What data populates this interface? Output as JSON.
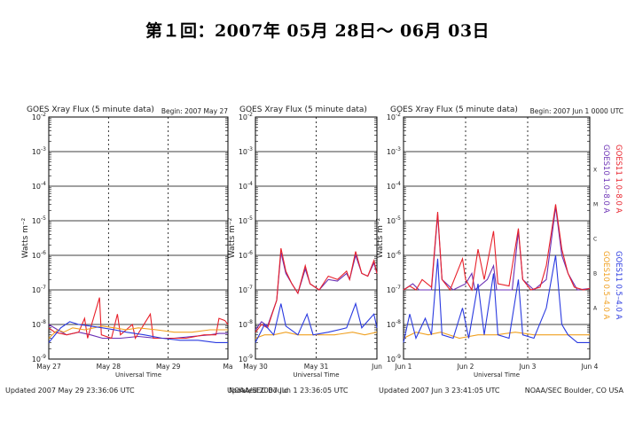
{
  "page": {
    "title": "第１回：2007年 05月 28日～ 06月 03日"
  },
  "legend": {
    "goes10_long": "GOES10 1.0–8.0 A",
    "goes11_long": "GOES11 1.0–8.0 A",
    "goes10_short": "GOES10 0.5–4.0 A",
    "goes11_short": "GOES11 0.5–4.0 A"
  },
  "colors": {
    "goes10_long": "#6a2fb4",
    "goes11_long": "#e8202a",
    "goes10_short": "#f0a020",
    "goes11_short": "#2a3ae0"
  },
  "chart_data": [
    {
      "type": "line",
      "title": "GOES Xray Flux (5 minute data)",
      "begin_label": "Begin:  2007 May 27",
      "ylabel": "Watts m⁻²",
      "xlabel": "Universal Time",
      "yscale": "log",
      "ylim": [
        1e-09,
        0.01
      ],
      "ytick_exponents": [
        -9,
        -8,
        -7,
        -6,
        -5,
        -4,
        -3,
        -2
      ],
      "xticks": [
        "May 27",
        "May 28",
        "May 29",
        "Ma"
      ],
      "xrange_days": [
        0,
        3
      ],
      "updated": "Updated 2007 May 29 23:36:06 UTC",
      "credit": "NOAA/SEC Bould",
      "series": [
        {
          "name": "GOES10 1.0–8.0 A",
          "color": "#6a2fb4",
          "points": [
            [
              0,
              1e-08
            ],
            [
              0.15,
              7e-09
            ],
            [
              0.3,
              5e-09
            ],
            [
              0.5,
              6e-09
            ],
            [
              0.7,
              5e-09
            ],
            [
              0.9,
              4e-09
            ],
            [
              1.2,
              4e-09
            ],
            [
              1.5,
              4.5e-09
            ],
            [
              1.8,
              4e-09
            ],
            [
              2.1,
              4e-09
            ],
            [
              2.4,
              4.5e-09
            ],
            [
              2.7,
              5e-09
            ],
            [
              2.85,
              5.5e-09
            ],
            [
              3,
              5.5e-09
            ]
          ]
        },
        {
          "name": "GOES11 1.0–8.0 A",
          "color": "#e8202a",
          "points": [
            [
              0,
              8e-09
            ],
            [
              0.1,
              6e-09
            ],
            [
              0.3,
              5e-09
            ],
            [
              0.5,
              6e-09
            ],
            [
              0.6,
              1.5e-08
            ],
            [
              0.65,
              4e-09
            ],
            [
              0.85,
              6e-08
            ],
            [
              0.88,
              5e-09
            ],
            [
              1.05,
              4e-09
            ],
            [
              1.15,
              2e-08
            ],
            [
              1.2,
              5e-09
            ],
            [
              1.4,
              1e-08
            ],
            [
              1.45,
              4e-09
            ],
            [
              1.7,
              2e-08
            ],
            [
              1.75,
              4e-09
            ],
            [
              2,
              4e-09
            ],
            [
              2.3,
              4e-09
            ],
            [
              2.6,
              5e-09
            ],
            [
              2.8,
              5e-09
            ],
            [
              2.85,
              1.5e-08
            ],
            [
              2.95,
              1.3e-08
            ],
            [
              3,
              1e-08
            ]
          ]
        },
        {
          "name": "GOES10 0.5–4.0 A",
          "color": "#f0a020",
          "points": [
            [
              0,
              4e-09
            ],
            [
              0.15,
              7e-09
            ],
            [
              0.25,
              6e-09
            ],
            [
              0.4,
              8e-09
            ],
            [
              0.6,
              7e-09
            ],
            [
              0.9,
              9e-09
            ],
            [
              1.1,
              8e-09
            ],
            [
              1.3,
              7e-09
            ],
            [
              1.5,
              8e-09
            ],
            [
              1.8,
              7e-09
            ],
            [
              2.1,
              6e-09
            ],
            [
              2.4,
              6e-09
            ],
            [
              2.7,
              7e-09
            ],
            [
              3,
              7e-09
            ]
          ]
        },
        {
          "name": "GOES11 0.5–4.0 A",
          "color": "#2a3ae0",
          "points": [
            [
              0,
              3e-09
            ],
            [
              0.2,
              8e-09
            ],
            [
              0.35,
              1.2e-08
            ],
            [
              0.5,
              1e-08
            ],
            [
              0.7,
              9e-09
            ],
            [
              0.9,
              8e-09
            ],
            [
              1.1,
              7e-09
            ],
            [
              1.3,
              6e-09
            ],
            [
              1.6,
              5e-09
            ],
            [
              1.9,
              4e-09
            ],
            [
              2.2,
              3.5e-09
            ],
            [
              2.5,
              3.5e-09
            ],
            [
              2.8,
              3e-09
            ],
            [
              3,
              3e-09
            ]
          ]
        }
      ]
    },
    {
      "type": "line",
      "title": "GOES Xray Flux (5 minute data)",
      "begin_label": "",
      "ylabel": "Watts m⁻²",
      "xlabel": "Universal Time",
      "yscale": "log",
      "ylim": [
        1e-09,
        0.01
      ],
      "ytick_exponents": [
        -9,
        -8,
        -7,
        -6,
        -5,
        -4,
        -3,
        -2
      ],
      "xticks": [
        "May 30",
        "May 31",
        "Jun"
      ],
      "xrange_days": [
        0,
        2
      ],
      "updated": "Updated 2007 Jun  1 23:36:05 UTC",
      "credit": "",
      "series": [
        {
          "name": "GOES10 1.0–8.0 A",
          "color": "#6a2fb4",
          "points": [
            [
              0,
              7e-09
            ],
            [
              0.1,
              1.2e-08
            ],
            [
              0.2,
              9e-09
            ],
            [
              0.35,
              5e-08
            ],
            [
              0.42,
              1.2e-06
            ],
            [
              0.5,
              3e-07
            ],
            [
              0.6,
              1.5e-07
            ],
            [
              0.7,
              8e-08
            ],
            [
              0.82,
              4e-07
            ],
            [
              0.9,
              1.5e-07
            ],
            [
              1.05,
              1e-07
            ],
            [
              1.2,
              2e-07
            ],
            [
              1.35,
              1.8e-07
            ],
            [
              1.5,
              3e-07
            ],
            [
              1.55,
              2e-07
            ],
            [
              1.65,
              1e-06
            ],
            [
              1.75,
              3e-07
            ],
            [
              1.85,
              2.5e-07
            ],
            [
              1.95,
              6e-07
            ],
            [
              2,
              3e-07
            ]
          ]
        },
        {
          "name": "GOES11 1.0–8.0 A",
          "color": "#e8202a",
          "points": [
            [
              0,
              6e-09
            ],
            [
              0.1,
              1e-08
            ],
            [
              0.2,
              8e-09
            ],
            [
              0.35,
              5e-08
            ],
            [
              0.42,
              1.6e-06
            ],
            [
              0.5,
              3.5e-07
            ],
            [
              0.6,
              1.5e-07
            ],
            [
              0.7,
              8e-08
            ],
            [
              0.82,
              5e-07
            ],
            [
              0.9,
              1.5e-07
            ],
            [
              1.05,
              1e-07
            ],
            [
              1.2,
              2.5e-07
            ],
            [
              1.35,
              2e-07
            ],
            [
              1.5,
              3.5e-07
            ],
            [
              1.55,
              2e-07
            ],
            [
              1.65,
              1.3e-06
            ],
            [
              1.75,
              3e-07
            ],
            [
              1.85,
              2.5e-07
            ],
            [
              1.95,
              7e-07
            ],
            [
              2,
              3e-07
            ]
          ]
        },
        {
          "name": "GOES10 0.5–4.0 A",
          "color": "#f0a020",
          "points": [
            [
              0,
              4e-09
            ],
            [
              0.15,
              5e-09
            ],
            [
              0.3,
              5e-09
            ],
            [
              0.5,
              6e-09
            ],
            [
              0.7,
              5e-09
            ],
            [
              1,
              5e-09
            ],
            [
              1.3,
              5e-09
            ],
            [
              1.6,
              6e-09
            ],
            [
              1.8,
              5e-09
            ],
            [
              2,
              6e-09
            ]
          ]
        },
        {
          "name": "GOES11 0.5–4.0 A",
          "color": "#2a3ae0",
          "points": [
            [
              0,
              3e-09
            ],
            [
              0.15,
              1e-08
            ],
            [
              0.3,
              5e-09
            ],
            [
              0.42,
              4e-08
            ],
            [
              0.5,
              9e-09
            ],
            [
              0.7,
              5e-09
            ],
            [
              0.85,
              2e-08
            ],
            [
              0.95,
              5e-09
            ],
            [
              1.2,
              6e-09
            ],
            [
              1.5,
              8e-09
            ],
            [
              1.65,
              4e-08
            ],
            [
              1.75,
              8e-09
            ],
            [
              1.95,
              2e-08
            ],
            [
              2,
              8e-09
            ]
          ]
        }
      ]
    },
    {
      "type": "line",
      "title": "GOES Xray Flux (5 minute data)",
      "begin_label": "Begin:  2007 Jun 1 0000 UTC",
      "ylabel": "Watts m⁻²",
      "xlabel": "Universal Time",
      "yscale": "log",
      "ylim": [
        1e-09,
        0.01
      ],
      "ytick_exponents": [
        -9,
        -8,
        -7,
        -6,
        -5,
        -4,
        -3,
        -2
      ],
      "xticks": [
        "Jun 1",
        "Jun 2",
        "Jun 3",
        "Jun 4"
      ],
      "xrange_days": [
        0,
        3
      ],
      "updated": "Updated 2007 Jun  3 23:41:05 UTC",
      "credit": "NOAA/SEC Boulder, CO USA",
      "right_axis_letters": [
        "X",
        "M",
        "C",
        "B",
        "A"
      ],
      "series": [
        {
          "name": "GOES10 1.0–8.0 A",
          "color": "#6a2fb4",
          "points": [
            [
              0,
              1e-07
            ],
            [
              0.15,
              1.5e-07
            ],
            [
              0.25,
              1e-07
            ],
            [
              0.45,
              1e-07
            ],
            [
              0.55,
              1.5e-05
            ],
            [
              0.62,
              2e-07
            ],
            [
              0.8,
              1e-07
            ],
            [
              1,
              1.5e-07
            ],
            [
              1.1,
              3e-07
            ],
            [
              1.15,
              1e-07
            ],
            [
              1.35,
              2e-07
            ],
            [
              1.45,
              5e-07
            ],
            [
              1.5,
              1e-07
            ],
            [
              1.75,
              1e-07
            ],
            [
              1.85,
              5e-06
            ],
            [
              1.92,
              2e-07
            ],
            [
              2.1,
              1e-07
            ],
            [
              2.3,
              2e-07
            ],
            [
              2.45,
              2.5e-05
            ],
            [
              2.55,
              1e-06
            ],
            [
              2.65,
              3e-07
            ],
            [
              2.8,
              1e-07
            ],
            [
              3,
              1.1e-07
            ]
          ]
        },
        {
          "name": "GOES11 1.0–8.0 A",
          "color": "#e8202a",
          "points": [
            [
              0,
              1e-07
            ],
            [
              0.1,
              1.3e-07
            ],
            [
              0.2,
              1e-07
            ],
            [
              0.3,
              2e-07
            ],
            [
              0.45,
              1.2e-07
            ],
            [
              0.55,
              1.8e-05
            ],
            [
              0.62,
              2e-07
            ],
            [
              0.75,
              1e-07
            ],
            [
              0.95,
              8e-07
            ],
            [
              1,
              2e-07
            ],
            [
              1.1,
              1e-07
            ],
            [
              1.2,
              1.5e-06
            ],
            [
              1.3,
              2e-07
            ],
            [
              1.45,
              5e-06
            ],
            [
              1.52,
              1.5e-07
            ],
            [
              1.7,
              1.3e-07
            ],
            [
              1.85,
              6e-06
            ],
            [
              1.92,
              2e-07
            ],
            [
              2.05,
              1e-07
            ],
            [
              2.2,
              1.2e-07
            ],
            [
              2.3,
              5e-07
            ],
            [
              2.45,
              3e-05
            ],
            [
              2.55,
              1.5e-06
            ],
            [
              2.65,
              3e-07
            ],
            [
              2.75,
              1.2e-07
            ],
            [
              2.9,
              1e-07
            ],
            [
              3,
              1.1e-07
            ]
          ]
        },
        {
          "name": "GOES10 0.5–4.0 A",
          "color": "#f0a020",
          "points": [
            [
              0,
              4e-09
            ],
            [
              0.2,
              6e-09
            ],
            [
              0.4,
              5e-09
            ],
            [
              0.6,
              6e-09
            ],
            [
              0.9,
              4e-09
            ],
            [
              1.2,
              5e-09
            ],
            [
              1.5,
              5e-09
            ],
            [
              1.8,
              6e-09
            ],
            [
              2.1,
              5e-09
            ],
            [
              2.4,
              5e-09
            ],
            [
              2.7,
              5e-09
            ],
            [
              3,
              5e-09
            ]
          ]
        },
        {
          "name": "GOES11 0.5–4.0 A",
          "color": "#2a3ae0",
          "points": [
            [
              0,
              3e-09
            ],
            [
              0.1,
              2e-08
            ],
            [
              0.2,
              4e-09
            ],
            [
              0.35,
              1.5e-08
            ],
            [
              0.45,
              5e-09
            ],
            [
              0.55,
              8e-07
            ],
            [
              0.62,
              5e-09
            ],
            [
              0.8,
              4e-09
            ],
            [
              0.95,
              3e-08
            ],
            [
              1.05,
              4e-09
            ],
            [
              1.2,
              1.5e-07
            ],
            [
              1.3,
              5e-09
            ],
            [
              1.45,
              3e-07
            ],
            [
              1.52,
              5e-09
            ],
            [
              1.7,
              4e-09
            ],
            [
              1.85,
              2e-07
            ],
            [
              1.92,
              5e-09
            ],
            [
              2.1,
              4e-09
            ],
            [
              2.3,
              3e-08
            ],
            [
              2.45,
              1e-06
            ],
            [
              2.55,
              1e-08
            ],
            [
              2.65,
              5e-09
            ],
            [
              2.8,
              3e-09
            ],
            [
              3,
              3e-09
            ]
          ]
        }
      ]
    }
  ]
}
